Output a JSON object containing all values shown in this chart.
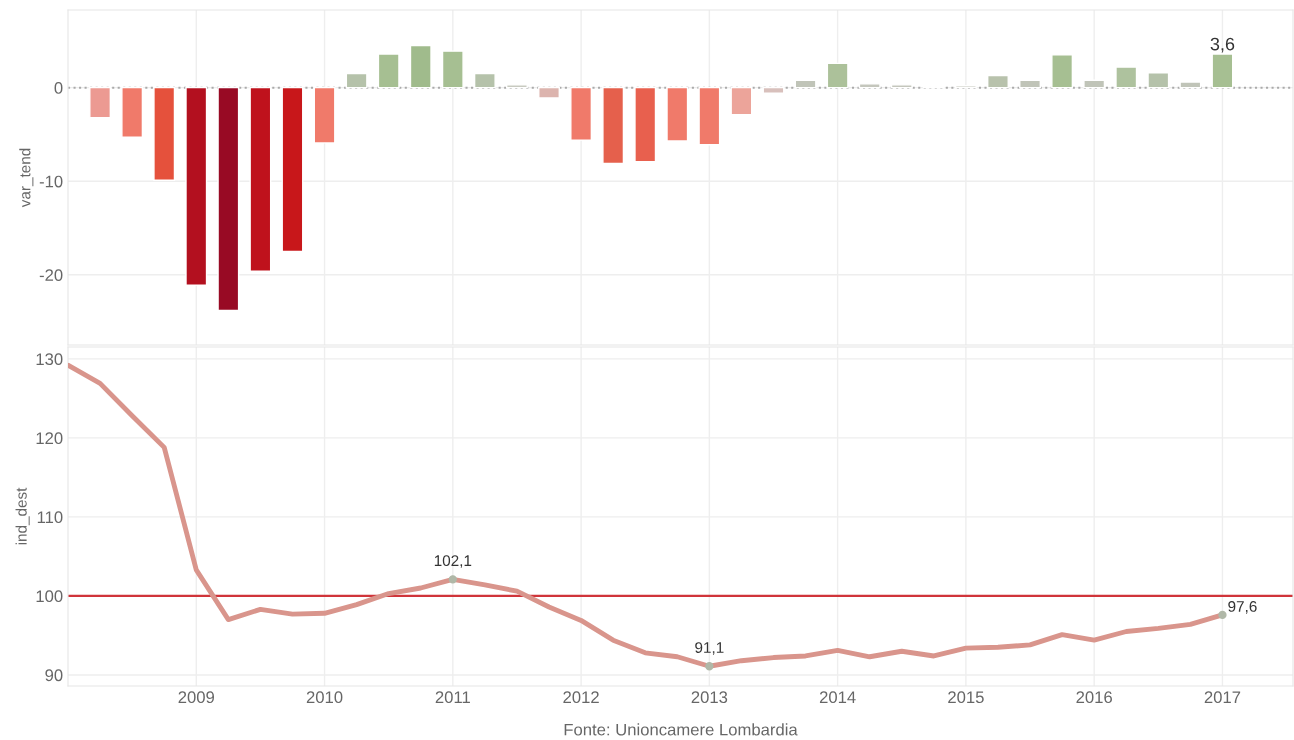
{
  "chart_data": [
    {
      "type": "bar",
      "ylabel": "var_tend",
      "x": [
        2008.25,
        2008.5,
        2008.75,
        2009.0,
        2009.25,
        2009.5,
        2009.75,
        2010.0,
        2010.25,
        2010.5,
        2010.75,
        2011.0,
        2011.25,
        2011.5,
        2011.75,
        2012.0,
        2012.25,
        2012.5,
        2012.75,
        2013.0,
        2013.25,
        2013.5,
        2013.75,
        2014.0,
        2014.25,
        2014.5,
        2014.75,
        2015.0,
        2015.25,
        2015.5,
        2015.75,
        2016.0,
        2016.25,
        2016.5,
        2016.75,
        2017.0
      ],
      "values": [
        -3.2,
        -5.3,
        -9.9,
        -21.1,
        -23.8,
        -19.6,
        -17.5,
        -5.9,
        1.5,
        3.6,
        4.5,
        3.9,
        1.5,
        0.3,
        -1.1,
        -5.6,
        -8.1,
        -7.9,
        -5.7,
        -6.1,
        -2.9,
        -0.6,
        0.8,
        2.6,
        0.4,
        0.3,
        0.1,
        0.2,
        1.3,
        0.8,
        3.5,
        0.8,
        2.2,
        1.6,
        0.6,
        3.6
      ],
      "colors": [
        "#ec9a92",
        "#f07a6a",
        "#e5513c",
        "#b3101f",
        "#980a24",
        "#bf121c",
        "#c8171a",
        "#f07a6a",
        "#b5c2aa",
        "#a6bf92",
        "#a0bb8c",
        "#a6bf92",
        "#b5c2aa",
        "#c8cac0",
        "#dcb4ae",
        "#f07a6a",
        "#e5604c",
        "#e8604e",
        "#f07a6a",
        "#f07a6a",
        "#eca49a",
        "#d8c0bc",
        "#c0c4b8",
        "#acc19a",
        "#c4c6bc",
        "#c4c6bc",
        "#c8c8c0",
        "#c4c6bc",
        "#b8c2ac",
        "#c0c4b8",
        "#a6bf92",
        "#c0c4b8",
        "#aec29e",
        "#b5c2aa",
        "#c0c4b8",
        "#a6bf92"
      ],
      "value_labels": [
        null,
        null,
        null,
        null,
        null,
        null,
        null,
        null,
        null,
        null,
        null,
        null,
        null,
        null,
        null,
        null,
        null,
        null,
        null,
        null,
        null,
        null,
        null,
        null,
        null,
        null,
        null,
        null,
        null,
        null,
        null,
        null,
        null,
        null,
        null,
        "3,6"
      ],
      "xlim": [
        2008.0,
        2017.55
      ],
      "xticks": [
        2009,
        2010,
        2011,
        2012,
        2013,
        2014,
        2015,
        2016,
        2017
      ],
      "ylim": [
        -27.5,
        8.3
      ],
      "yticks": [
        {
          "value": -20,
          "label": "-20"
        },
        {
          "value": -10,
          "label": "-10"
        },
        0
      ],
      "ref_lines": [
        {
          "axis": "y",
          "value": 0,
          "color": "#aaaaaa",
          "line_style": "dotted"
        }
      ],
      "grid": true,
      "tick_labels": "y"
    },
    {
      "type": "line",
      "ylabel": "ind_dest",
      "series": [
        {
          "color": "#d9958c",
          "x": [
            2008.0,
            2008.25,
            2008.5,
            2008.75,
            2009.0,
            2009.25,
            2009.5,
            2009.75,
            2010.0,
            2010.25,
            2010.5,
            2010.75,
            2011.0,
            2011.25,
            2011.5,
            2011.75,
            2012.0,
            2012.25,
            2012.5,
            2012.75,
            2013.0,
            2013.25,
            2013.5,
            2013.75,
            2014.0,
            2014.25,
            2014.5,
            2014.75,
            2015.0,
            2015.25,
            2015.5,
            2015.75,
            2016.0,
            2016.25,
            2016.5,
            2016.75,
            2017.0
          ],
          "values": [
            129.2,
            126.9,
            122.8,
            118.8,
            103.3,
            97.0,
            98.3,
            97.7,
            97.8,
            98.9,
            100.3,
            101.0,
            102.1,
            101.4,
            100.6,
            98.6,
            96.9,
            94.4,
            92.8,
            92.3,
            91.1,
            91.8,
            92.2,
            92.4,
            93.1,
            92.3,
            93.0,
            92.4,
            93.4,
            93.5,
            93.8,
            95.1,
            94.4,
            95.5,
            95.9,
            96.4,
            97.6
          ],
          "value_labels": [
            null,
            null,
            null,
            null,
            null,
            null,
            null,
            null,
            null,
            null,
            null,
            null,
            "102,1",
            null,
            null,
            null,
            null,
            null,
            null,
            null,
            "91,1",
            null,
            null,
            null,
            null,
            null,
            null,
            null,
            null,
            null,
            null,
            null,
            null,
            null,
            null,
            null,
            "97,6"
          ]
        }
      ],
      "xlim": [
        2008.0,
        2017.55
      ],
      "xticks": [
        2009,
        2010,
        2011,
        2012,
        2013,
        2014,
        2015,
        2016,
        2017
      ],
      "ylim": [
        88.6,
        131.5
      ],
      "yticks": [
        90,
        100,
        110,
        120,
        130
      ],
      "ref_lines": [
        {
          "axis": "y",
          "value": 100,
          "color": "#d0343a",
          "line_style": "solid"
        }
      ],
      "annotations": [
        "Fonte: Unioncamere Lombardia"
      ],
      "grid": true
    }
  ]
}
